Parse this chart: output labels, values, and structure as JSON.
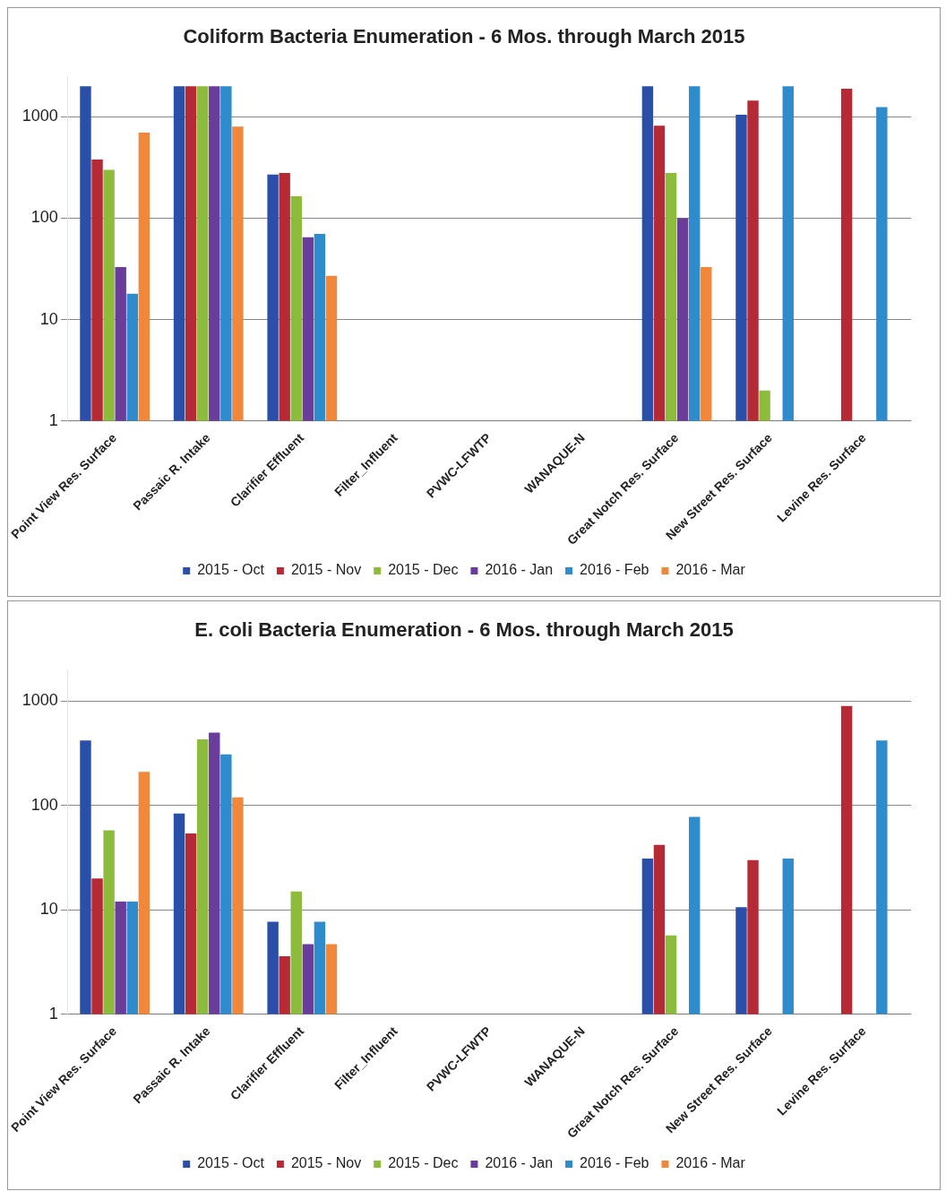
{
  "chart_data": [
    {
      "type": "bar",
      "title": "Coliform Bacteria Enumeration - 6 Mos. through March 2015",
      "categories": [
        "Point View Res. Surface",
        "Passaic R. Intake",
        "Clarifier Effluent",
        "Filter_Influent",
        "PVWC-LFWTP",
        "WANAQUE-N",
        "Great Notch Res. Surface",
        "New Street Res. Surface",
        "Levine Res. Surface"
      ],
      "series": [
        {
          "name": "2015 - Oct",
          "color": "#2a4fa8",
          "values": [
            2000,
            2000,
            270,
            null,
            null,
            null,
            2000,
            1050,
            null
          ]
        },
        {
          "name": "2015 - Nov",
          "color": "#b52a35",
          "values": [
            380,
            2000,
            280,
            null,
            null,
            null,
            820,
            1450,
            1900
          ]
        },
        {
          "name": "2015 - Dec",
          "color": "#8dbb3c",
          "values": [
            300,
            2000,
            165,
            null,
            null,
            null,
            280,
            2,
            null
          ]
        },
        {
          "name": "2016 - Jan",
          "color": "#6a3d9a",
          "values": [
            33,
            2000,
            65,
            null,
            null,
            null,
            100,
            null,
            null
          ]
        },
        {
          "name": "2016 - Feb",
          "color": "#2f8ccc",
          "values": [
            18,
            2000,
            70,
            null,
            null,
            null,
            2000,
            2000,
            1250
          ]
        },
        {
          "name": "2016 - Mar",
          "color": "#f0873a",
          "values": [
            700,
            800,
            27,
            null,
            null,
            null,
            33,
            null,
            null
          ]
        }
      ],
      "log": true,
      "ylim": [
        1,
        2500
      ],
      "yticks": [
        1,
        10,
        100,
        1000
      ],
      "grid": "y",
      "legend": "bottom"
    },
    {
      "type": "bar",
      "title": "E. coli Bacteria Enumeration - 6 Mos. through March 2015",
      "categories": [
        "Point View Res. Surface",
        "Passaic R. Intake",
        "Clarifier Effluent",
        "Filter_Influent",
        "PVWC-LFWTP",
        "WANAQUE-N",
        "Great Notch Res. Surface",
        "New Street Res. Surface",
        "Levine Res. Surface"
      ],
      "series": [
        {
          "name": "2015 - Oct",
          "color": "#2a4fa8",
          "values": [
            420,
            84,
            7.7,
            null,
            null,
            null,
            31,
            10.6,
            null
          ]
        },
        {
          "name": "2015 - Nov",
          "color": "#b52a35",
          "values": [
            20,
            54,
            3.6,
            null,
            null,
            null,
            42,
            30,
            900
          ]
        },
        {
          "name": "2015 - Dec",
          "color": "#8dbb3c",
          "values": [
            58,
            430,
            15,
            null,
            null,
            null,
            5.7,
            null,
            null
          ]
        },
        {
          "name": "2016 - Jan",
          "color": "#6a3d9a",
          "values": [
            12,
            500,
            4.7,
            null,
            null,
            null,
            null,
            null,
            null
          ]
        },
        {
          "name": "2016 - Feb",
          "color": "#2f8ccc",
          "values": [
            12,
            310,
            7.7,
            null,
            null,
            null,
            78,
            31,
            420
          ]
        },
        {
          "name": "2016 - Mar",
          "color": "#f0873a",
          "values": [
            210,
            120,
            4.7,
            null,
            null,
            null,
            null,
            null,
            null
          ]
        }
      ],
      "log": true,
      "ylim": [
        1,
        2000
      ],
      "yticks": [
        1,
        10,
        100,
        1000
      ],
      "grid": "y",
      "legend": "bottom"
    }
  ]
}
